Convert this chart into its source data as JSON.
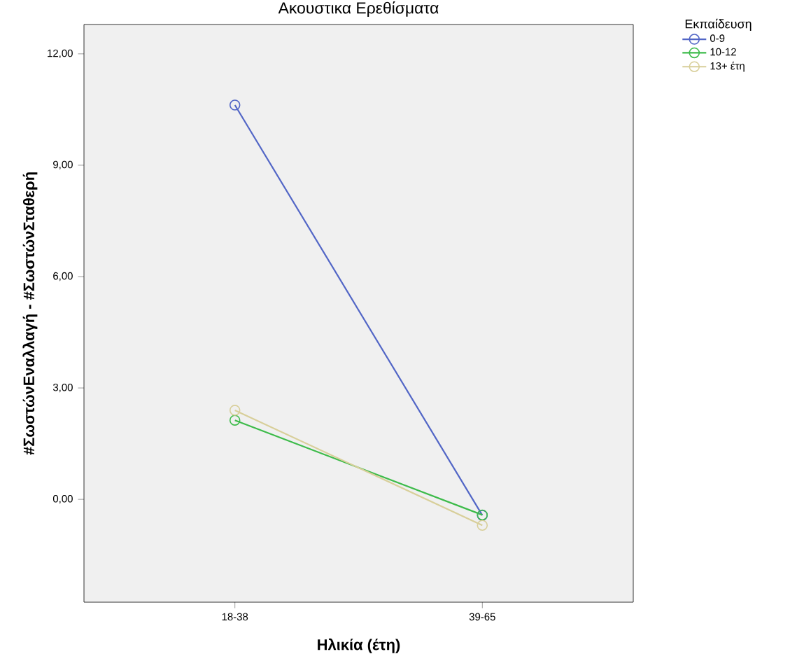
{
  "chart_data": {
    "type": "line",
    "title": "Ακουστικα Ερεθίσματα",
    "xlabel": "Ηλικία (έτη)",
    "ylabel": "#ΣωστώνΕναλλαγή - #ΣωστώνΣταθερή",
    "legend_title": "Εκπαίδευση",
    "categories": [
      "18-38",
      "39-65"
    ],
    "series": [
      {
        "name": "0-9",
        "color": "#5266c6",
        "values": [
          10.62,
          -0.43
        ]
      },
      {
        "name": "10-12",
        "color": "#3dbb4a",
        "values": [
          2.13,
          -0.42
        ]
      },
      {
        "name": "13+ έτη",
        "color": "#d8cf9a",
        "values": [
          2.4,
          -0.7
        ]
      }
    ],
    "ylim": [
      -2.77,
      12.79
    ],
    "yticks": [
      {
        "value": 0,
        "label": "0,00"
      },
      {
        "value": 3,
        "label": "3,00"
      },
      {
        "value": 6,
        "label": "6,00"
      },
      {
        "value": 9,
        "label": "9,00"
      },
      {
        "value": 12,
        "label": "12,00"
      }
    ],
    "marker": "circle",
    "legend": "top right",
    "grid": false
  }
}
